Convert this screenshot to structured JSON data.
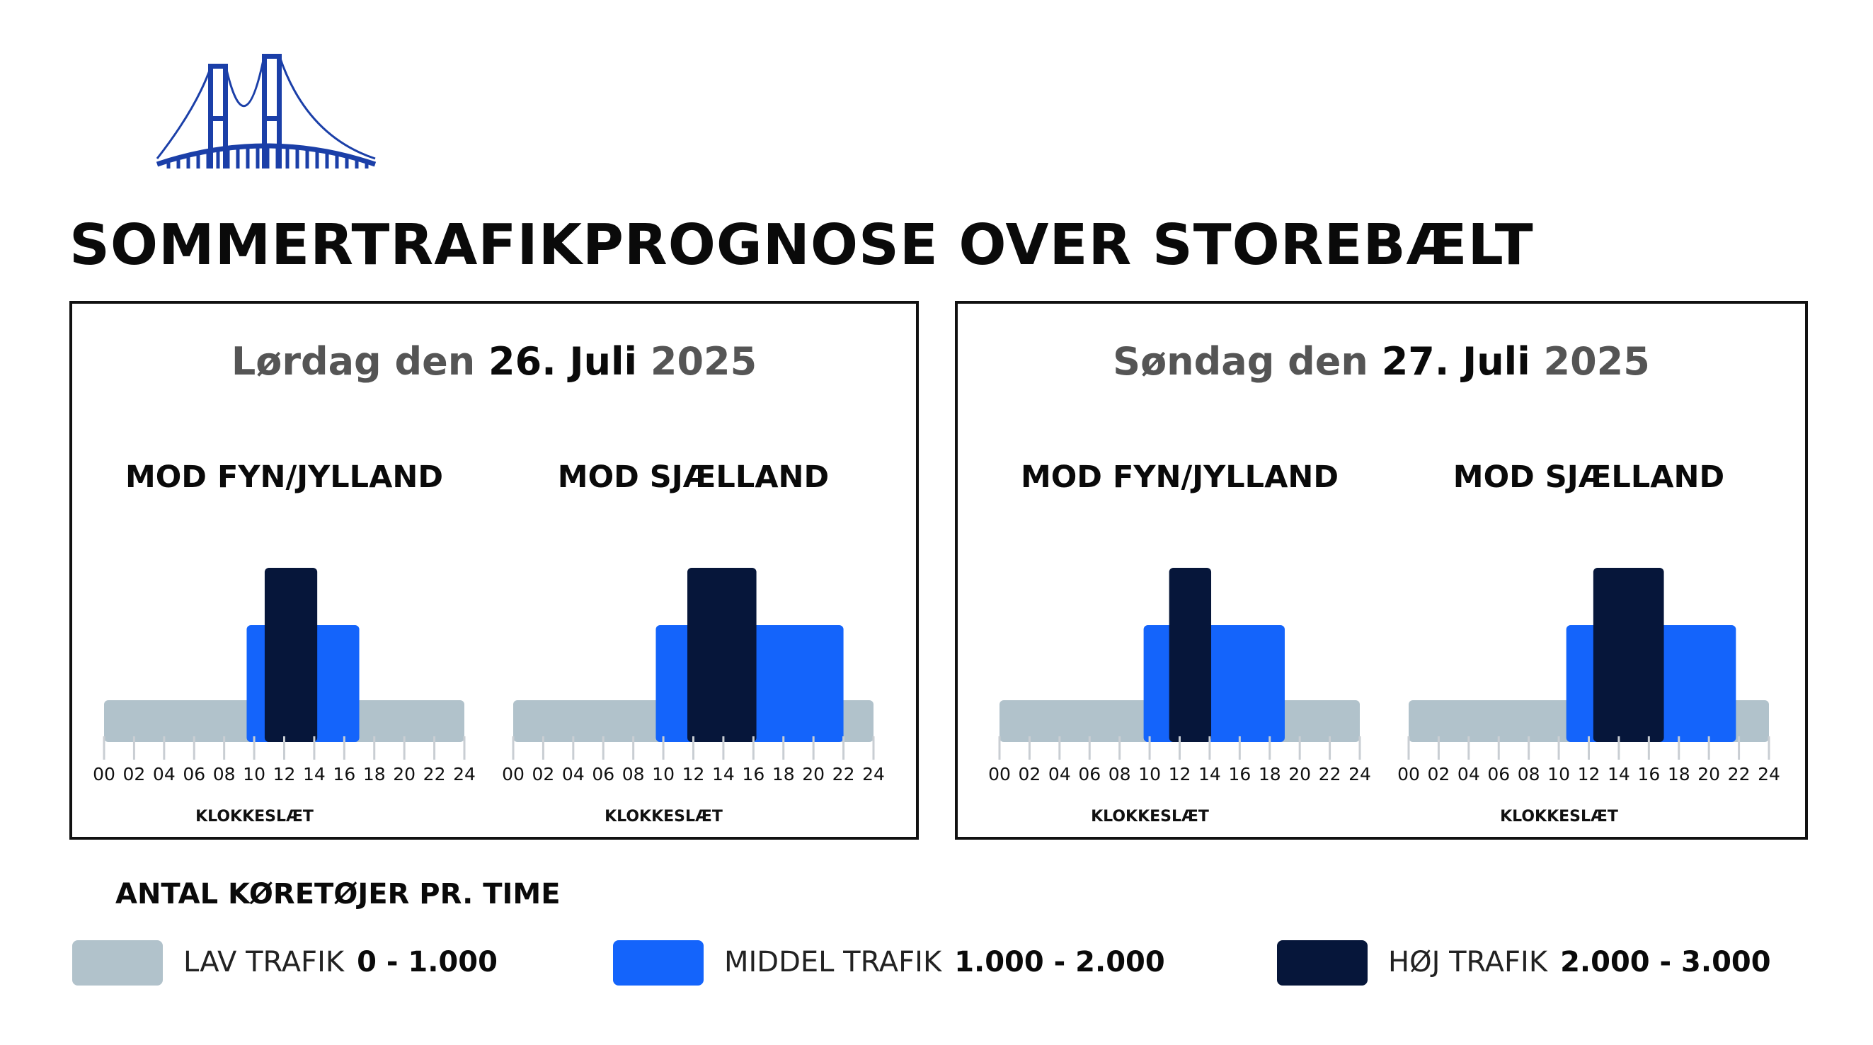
{
  "title": "SOMMERTRAFIKPROGNOSE OVER STOREBÆLT",
  "colors": {
    "low": "#b1c2cb",
    "medium": "#1464fb",
    "high": "#06163a",
    "accent": "#1b3fa8"
  },
  "days": [
    {
      "prefix": "Lørdag den",
      "date": "26. Juli",
      "year": "2025"
    },
    {
      "prefix": "Søndag den",
      "date": "27. Juli",
      "year": "2025"
    }
  ],
  "legend": {
    "heading": "ANTAL KØRETØJER PR. TIME",
    "items": [
      {
        "label": "LAV TRAFIK",
        "range": "0 - 1.000",
        "color": "#b1c2cb"
      },
      {
        "label": "MIDDEL TRAFIK",
        "range": "1.000 - 2.000",
        "color": "#1464fb"
      },
      {
        "label": "HØJ TRAFIK",
        "range": "2.000 - 3.000",
        "color": "#06163a"
      }
    ]
  },
  "chart_data": [
    {
      "type": "bar",
      "day": "Lørdag den 26. Juli 2025",
      "title": "MOD FYN/JYLLAND",
      "xlabel": "KLOKKESLÆT",
      "xlim": [
        0,
        24
      ],
      "x_ticks": [
        "00",
        "02",
        "04",
        "06",
        "08",
        "10",
        "12",
        "14",
        "16",
        "18",
        "20",
        "22",
        "24"
      ],
      "segments": [
        {
          "level": "low",
          "start": 0,
          "end": 24
        },
        {
          "level": "medium",
          "start": 9.5,
          "end": 17
        },
        {
          "level": "high",
          "start": 10.7,
          "end": 14.2
        }
      ]
    },
    {
      "type": "bar",
      "day": "Lørdag den 26. Juli 2025",
      "title": "MOD SJÆLLAND",
      "xlabel": "KLOKKESLÆT",
      "xlim": [
        0,
        24
      ],
      "x_ticks": [
        "00",
        "02",
        "04",
        "06",
        "08",
        "10",
        "12",
        "14",
        "16",
        "18",
        "20",
        "22",
        "24"
      ],
      "segments": [
        {
          "level": "low",
          "start": 0,
          "end": 24
        },
        {
          "level": "medium",
          "start": 9.5,
          "end": 22
        },
        {
          "level": "high",
          "start": 11.6,
          "end": 16.2
        }
      ]
    },
    {
      "type": "bar",
      "day": "Søndag den 27. Juli 2025",
      "title": "MOD FYN/JYLLAND",
      "xlabel": "KLOKKESLÆT",
      "xlim": [
        0,
        24
      ],
      "x_ticks": [
        "00",
        "02",
        "04",
        "06",
        "08",
        "10",
        "12",
        "14",
        "16",
        "18",
        "20",
        "22",
        "24"
      ],
      "segments": [
        {
          "level": "low",
          "start": 0,
          "end": 24
        },
        {
          "level": "medium",
          "start": 9.6,
          "end": 19
        },
        {
          "level": "high",
          "start": 11.3,
          "end": 14.1
        }
      ]
    },
    {
      "type": "bar",
      "day": "Søndag den 27. Juli 2025",
      "title": "MOD SJÆLLAND",
      "xlabel": "KLOKKESLÆT",
      "xlim": [
        0,
        24
      ],
      "x_ticks": [
        "00",
        "02",
        "04",
        "06",
        "08",
        "10",
        "12",
        "14",
        "16",
        "18",
        "20",
        "22",
        "24"
      ],
      "segments": [
        {
          "level": "low",
          "start": 0,
          "end": 24
        },
        {
          "level": "medium",
          "start": 10.5,
          "end": 21.8
        },
        {
          "level": "high",
          "start": 12.3,
          "end": 17
        }
      ]
    }
  ]
}
